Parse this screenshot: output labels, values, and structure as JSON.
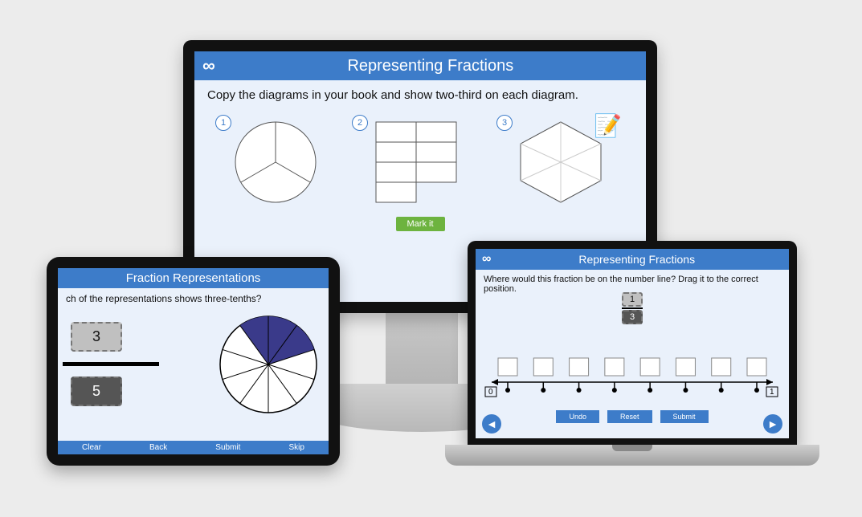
{
  "colors": {
    "page_bg": "#ececec",
    "screen_bg": "#eaf1fb",
    "brand_blue": "#3d7cc9",
    "green_btn": "#6db33f",
    "pie_fill": "#3a3a8a"
  },
  "desktop": {
    "logo_glyph": "∞",
    "title": "Representing Fractions",
    "instruction": "Copy the diagrams in your book and show two-third on each diagram.",
    "diagrams": {
      "badge1": "1",
      "badge2": "2",
      "badge3": "3"
    },
    "notebook_glyph": "📝",
    "mark_btn": "Mark it"
  },
  "tablet": {
    "title": "Fraction Representations",
    "question": "ch of the representations shows three-tenths?",
    "tile_top": "3",
    "tile_bottom": "5",
    "pie": {
      "slices_total": 10,
      "slices_filled": 3,
      "fill_color": "#3a3a8a"
    },
    "footer": {
      "clear": "Clear",
      "back": "Back",
      "submit": "Submit",
      "skip": "Skip"
    }
  },
  "laptop": {
    "logo_glyph": "∞",
    "title": "Representing Fractions",
    "question": "Where would this fraction be on the number line? Drag it to the correct position.",
    "fraction": {
      "num": "1",
      "den": "3"
    },
    "numberline": {
      "start_label": "0",
      "end_label": "1",
      "ticks": 8,
      "boxes": 8
    },
    "buttons": {
      "undo": "Undo",
      "reset": "Reset",
      "submit": "Submit"
    },
    "nav_left_glyph": "◄",
    "nav_right_glyph": "►"
  }
}
